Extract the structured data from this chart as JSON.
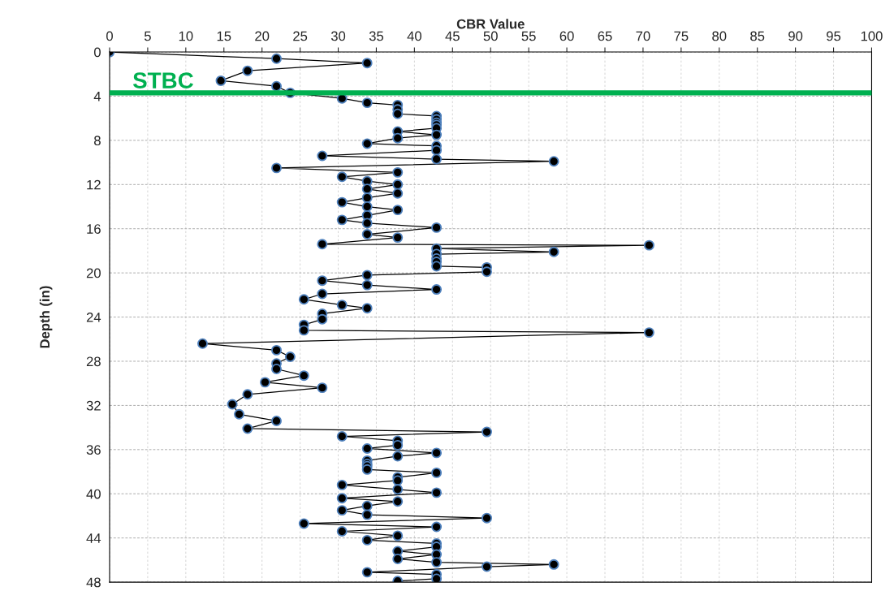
{
  "chart_data": {
    "type": "line",
    "xlabel": "CBR Value",
    "ylabel": "Depth (in)",
    "xlim": [
      0,
      100
    ],
    "xticks": [
      0,
      5,
      10,
      15,
      20,
      25,
      30,
      35,
      40,
      45,
      50,
      55,
      60,
      65,
      70,
      75,
      80,
      85,
      90,
      95,
      100
    ],
    "ylim": [
      48,
      0
    ],
    "yticks": [
      0,
      4,
      8,
      12,
      16,
      20,
      24,
      28,
      32,
      36,
      40,
      44,
      48
    ],
    "grid": true,
    "marker": "circle",
    "line_style": "solid",
    "ref_lines": [
      {
        "axis": "y",
        "value": 3.7,
        "label": "STBC",
        "color": "#00b050"
      }
    ],
    "series": [
      {
        "color": "#000000",
        "x": [
          0,
          21.9,
          33.8,
          18.1,
          14.6,
          21.9,
          23.7,
          30.5,
          33.8,
          37.8,
          37.8,
          37.8,
          42.9,
          42.9,
          42.9,
          42.9,
          42.9,
          37.8,
          42.9,
          37.8,
          33.8,
          42.9,
          42.9,
          27.9,
          42.9,
          58.3,
          21.9,
          37.8,
          30.5,
          33.8,
          37.8,
          33.8,
          37.8,
          33.8,
          30.5,
          33.8,
          37.8,
          33.8,
          30.5,
          33.8,
          42.9,
          33.8,
          37.8,
          27.9,
          70.8,
          42.9,
          58.3,
          42.9,
          42.9,
          42.9,
          42.9,
          49.5,
          49.5,
          33.8,
          27.9,
          33.8,
          42.9,
          27.9,
          25.5,
          30.5,
          33.8,
          27.9,
          27.9,
          25.5,
          25.5,
          70.8,
          12.2,
          21.9,
          23.7,
          21.9,
          21.9,
          25.5,
          20.4,
          27.9,
          18.1,
          16.1,
          17.0,
          21.9,
          18.1,
          49.5,
          30.5,
          37.8,
          37.8,
          33.8,
          42.9,
          37.8,
          33.8,
          33.8,
          33.8,
          33.8,
          42.9,
          37.8,
          37.8,
          30.5,
          37.8,
          42.9,
          30.5,
          37.8,
          33.8,
          30.5,
          33.8,
          49.5,
          25.5,
          42.9,
          30.5,
          37.8,
          33.8,
          42.9,
          42.9,
          37.8,
          42.9,
          37.8,
          42.9,
          58.3,
          49.5,
          33.8,
          42.9,
          42.9,
          37.8
        ],
        "values": [
          0,
          0.6,
          1.0,
          1.7,
          2.6,
          3.1,
          3.7,
          4.2,
          4.6,
          4.8,
          5.2,
          5.6,
          5.8,
          6.1,
          6.4,
          6.6,
          6.9,
          7.2,
          7.5,
          7.8,
          8.3,
          8.5,
          8.9,
          9.4,
          9.7,
          9.9,
          10.5,
          10.9,
          11.3,
          11.7,
          12.0,
          12.4,
          12.8,
          13.2,
          13.6,
          14.0,
          14.3,
          14.8,
          15.2,
          15.5,
          15.9,
          16.5,
          16.8,
          17.4,
          17.5,
          17.8,
          18.1,
          18.3,
          18.7,
          19.0,
          19.4,
          19.5,
          19.9,
          20.2,
          20.7,
          21.1,
          21.5,
          21.9,
          22.4,
          22.9,
          23.2,
          23.7,
          24.2,
          24.7,
          25.2,
          25.4,
          26.4,
          27.0,
          27.6,
          28.2,
          28.7,
          29.3,
          29.9,
          30.4,
          31.0,
          31.9,
          32.8,
          33.4,
          34.1,
          34.4,
          34.8,
          35.2,
          35.6,
          35.9,
          36.3,
          36.6,
          37.0,
          37.3,
          37.5,
          37.8,
          38.1,
          38.5,
          38.8,
          39.2,
          39.6,
          39.9,
          40.4,
          40.7,
          41.1,
          41.5,
          41.9,
          42.2,
          42.7,
          43.0,
          43.4,
          43.8,
          44.2,
          44.5,
          44.8,
          45.2,
          45.5,
          45.9,
          46.2,
          46.4,
          46.6,
          47.1,
          47.3,
          47.7,
          47.9
        ]
      }
    ]
  }
}
